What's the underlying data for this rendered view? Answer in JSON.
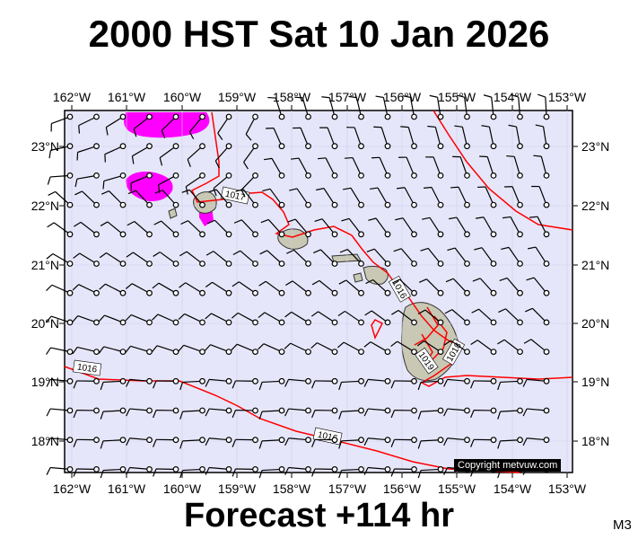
{
  "title": "2000 HST Sat 10 Jan 2026",
  "footer": "Forecast +114 hr",
  "model_label": "M3",
  "copyright": "Copyright metvuw.com",
  "lon_labels": [
    "162°W",
    "161°W",
    "160°W",
    "159°W",
    "158°W",
    "157°W",
    "156°W",
    "155°W",
    "154°W",
    "153°W"
  ],
  "lat_labels": [
    "23°N",
    "22°N",
    "21°N",
    "20°N",
    "19°N",
    "18°N"
  ],
  "isobar_labels": [
    "1017",
    "1016",
    "1016",
    "1016",
    "1019",
    "1018"
  ],
  "colors": {
    "ocean": "#e6e6fa",
    "isobar": "#ff0000",
    "rain": "#ff00ff",
    "land": "#c8c8b4"
  }
}
